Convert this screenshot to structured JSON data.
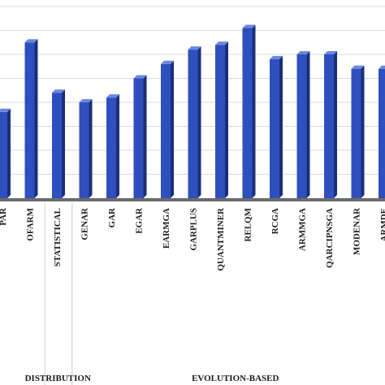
{
  "chart_data": {
    "type": "bar",
    "title": "",
    "xlabel": "",
    "ylabel": "",
    "categories": [
      "PAR",
      "OFARM",
      "STATISTICAL",
      "GENAR",
      "GAR",
      "EGAR",
      "EARMGA",
      "GARPLUS",
      "QUANTMINER",
      "RELQM",
      "RCGA",
      "ARMMGA",
      "QARCIPNSGA",
      "MODENAR",
      "ARMDE"
    ],
    "series": [
      {
        "values": [
          0.36,
          0.65,
          0.44,
          0.4,
          0.42,
          0.5,
          0.56,
          0.62,
          0.64,
          0.71,
          0.58,
          0.6,
          0.6,
          0.54,
          0.54
        ]
      }
    ],
    "ylim": [
      0,
      0.8
    ],
    "grid": true,
    "bar_color": "#2f4fbf",
    "bar_side_color": "#1a2f7a",
    "bar_top_color": "#6b86e0",
    "floor_color": "#6b6b6b",
    "groups": [
      {
        "label": "DISTRIBUTION",
        "categories": [
          "STATISTICAL"
        ]
      },
      {
        "label": "EVOLUTION-BASED",
        "categories": [
          "GENAR",
          "GAR",
          "EGAR",
          "EARMGA",
          "GARPLUS",
          "QUANTMINER",
          "RELQM",
          "RCGA",
          "ARMMGA",
          "QARCIPNSGA",
          "MODENAR",
          "ARMDE"
        ]
      }
    ]
  }
}
